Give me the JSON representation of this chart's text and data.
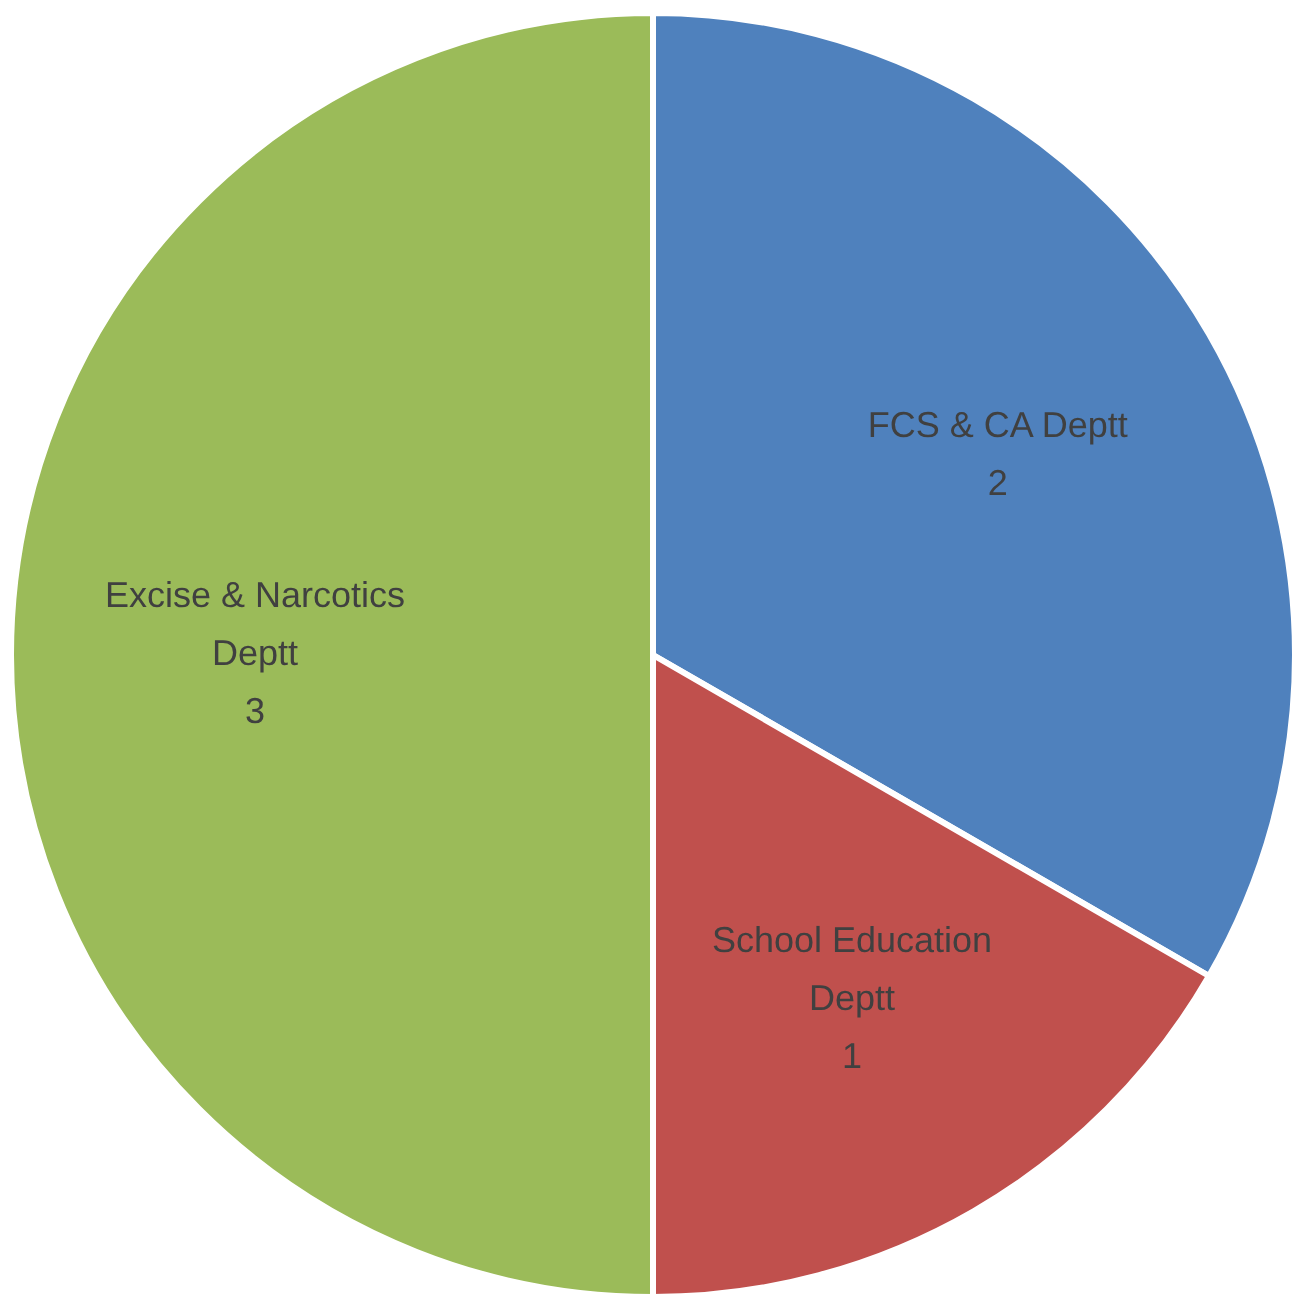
{
  "chart_data": {
    "type": "pie",
    "categories": [
      "FCS & CA Deptt",
      "School Education Deptt",
      "Excise & Narcotics Deptt"
    ],
    "values": [
      2,
      1,
      3
    ],
    "colors": [
      "#4f81bd",
      "#c0504d",
      "#9bbb59"
    ],
    "data_labels": true
  }
}
